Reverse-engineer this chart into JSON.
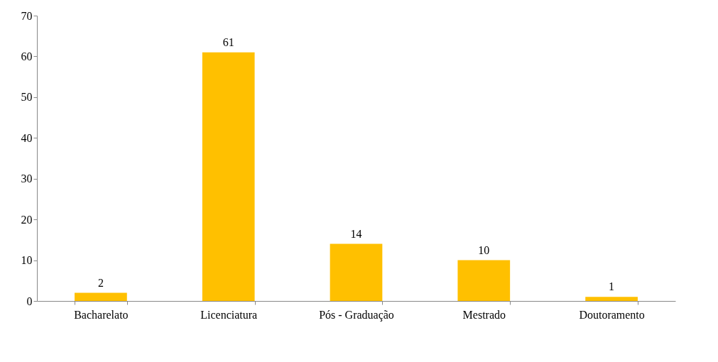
{
  "chart_data": {
    "type": "bar",
    "categories": [
      "Bacharelato",
      "Licenciatura",
      "Pós - Graduação",
      "Mestrado",
      "Doutoramento"
    ],
    "values": [
      2,
      61,
      14,
      10,
      1
    ],
    "color": "#ffc000",
    "ylim": [
      0,
      70
    ],
    "yticks": [
      0,
      10,
      20,
      30,
      40,
      50,
      60,
      70
    ],
    "grid": false,
    "data_labels": true
  }
}
